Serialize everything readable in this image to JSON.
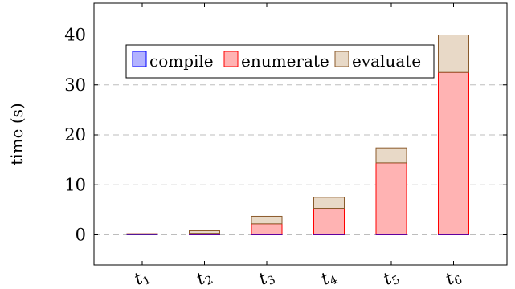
{
  "chart_data": {
    "type": "bar",
    "stacked": true,
    "categories": [
      {
        "base": "t",
        "sub": "1"
      },
      {
        "base": "t",
        "sub": "2"
      },
      {
        "base": "t",
        "sub": "3"
      },
      {
        "base": "t",
        "sub": "4"
      },
      {
        "base": "t",
        "sub": "5"
      },
      {
        "base": "t",
        "sub": "6"
      }
    ],
    "series": [
      {
        "name": "compile",
        "fill": "#b3b3ff",
        "stroke": "#0000ff",
        "values": [
          0.1,
          0.1,
          0.1,
          0.1,
          0.1,
          0.1
        ]
      },
      {
        "name": "enumerate",
        "fill": "#ffb3b3",
        "stroke": "#ff0000",
        "values": [
          0.1,
          0.2,
          2.1,
          5.2,
          14.3,
          32.4
        ]
      },
      {
        "name": "evaluate",
        "fill": "#e8d9c7",
        "stroke": "#8b5a2b",
        "values": [
          0.0,
          0.5,
          1.5,
          2.2,
          3.0,
          7.5
        ]
      }
    ],
    "ylabel": "time (s)",
    "xlabel": "",
    "title": "",
    "ylim": [
      -5.5,
      45
    ],
    "yticks": [
      0,
      10,
      20,
      30,
      40
    ],
    "grid": "horizontal-dashed",
    "legend": "top-center"
  }
}
